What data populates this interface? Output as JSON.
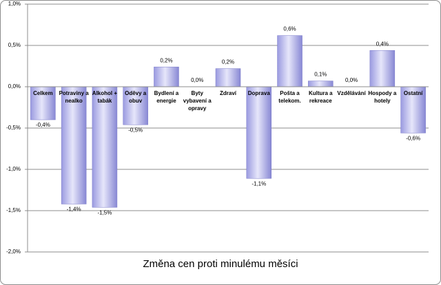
{
  "chart_data": {
    "type": "bar",
    "title": "Změna cen proti minulému měsíci",
    "categories": [
      "Celkem",
      "Potraviny a nealko",
      "Alkohol + tabák",
      "Oděvy a obuv",
      "Bydlení a energie",
      "Byty vybavení a opravy",
      "Zdraví",
      "Doprava",
      "Pošta a telekom.",
      "Kultura a rekreace",
      "Vzdělávání",
      "Hospody a hotely",
      "Ostatní"
    ],
    "values": [
      -0.4,
      -1.42,
      -1.46,
      -0.46,
      0.24,
      0,
      0.22,
      -1.11,
      0.62,
      0.07,
      0,
      0.44,
      -0.56
    ],
    "value_labels": [
      "-0,4%",
      "-1,4%",
      "-1,5%",
      "-0,5%",
      "0,2%",
      "0,0%",
      "0,2%",
      "-1,1%",
      "0,6%",
      "0,1%",
      "0,0%",
      "0,4%",
      "-0,6%"
    ],
    "ylim": [
      -2,
      1
    ],
    "yticks": [
      {
        "value": -2,
        "label": "-2,0%"
      },
      {
        "value": -1.5,
        "label": "-1,5%"
      },
      {
        "value": -1,
        "label": "-1,0%"
      },
      {
        "value": -0.5,
        "label": "-0,5%"
      },
      {
        "value": 0,
        "label": "0,0%"
      },
      {
        "value": 0.5,
        "label": "0,5%"
      },
      {
        "value": 1,
        "label": "1,0%"
      }
    ],
    "grid": true
  }
}
